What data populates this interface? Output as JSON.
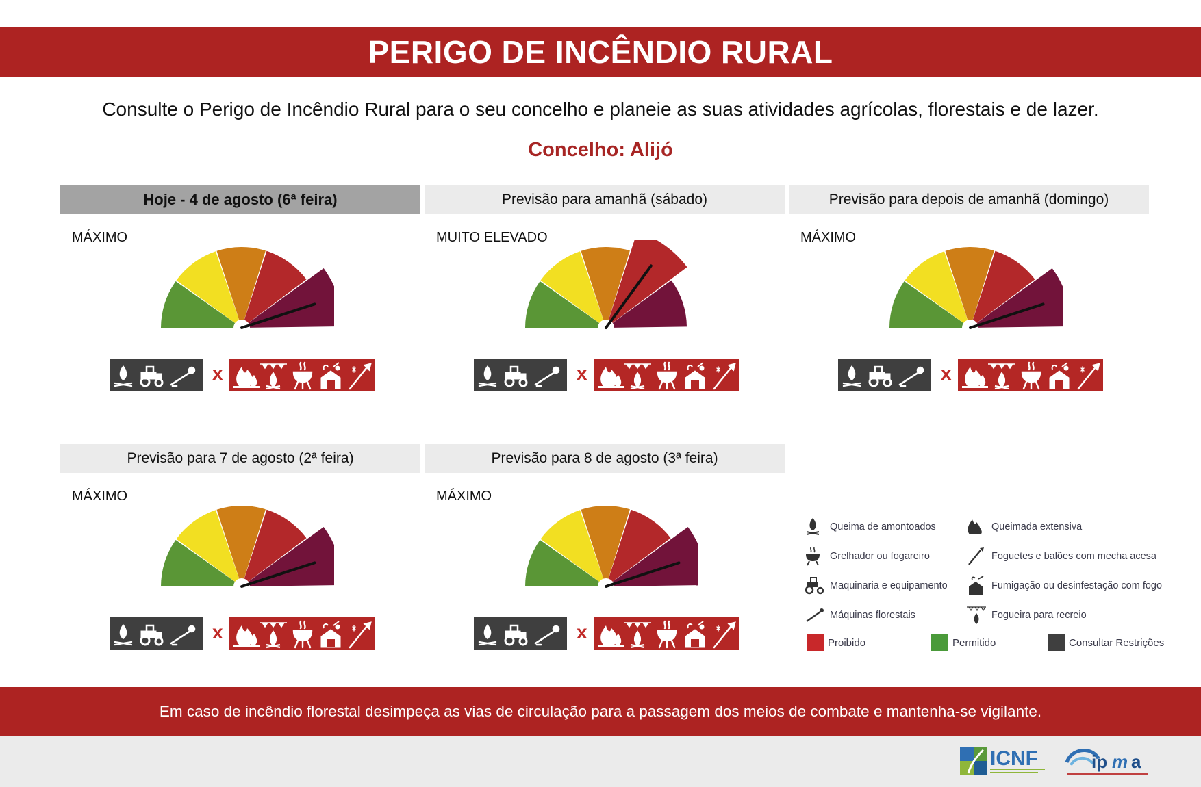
{
  "header": {
    "title": "PERIGO DE INCÊNDIO RURAL"
  },
  "intro": "Consulte o Perigo de Incêndio Rural para o seu concelho e planeie as suas atividades agrícolas, florestais e de lazer.",
  "concelho": "Concelho: Alijó",
  "colors": {
    "banner_red": "#ad2322",
    "level_green": "#5a9636",
    "level_yellow": "#f2df22",
    "level_orange": "#ce7e17",
    "level_red": "#b3282a",
    "level_maximum": "#72133a",
    "restrictions_grey": "#3f3f3f"
  },
  "panels": [
    {
      "header": "Hoje - 4 de agosto (6ª feira)",
      "level": "MÁXIMO",
      "level_index": 5,
      "today": true
    },
    {
      "header": "Previsão para amanhã (sábado)",
      "level": "MUITO ELEVADO",
      "level_index": 4,
      "today": false
    },
    {
      "header": "Previsão para depois de amanhã (domingo)",
      "level": "MÁXIMO",
      "level_index": 5,
      "today": false
    },
    {
      "header": "Previsão para 7 de agosto (2ª feira)",
      "level": "MÁXIMO",
      "level_index": 5,
      "today": false
    },
    {
      "header": "Previsão para 8 de agosto (3ª feira)",
      "level": "MÁXIMO",
      "level_index": 5,
      "today": false
    }
  ],
  "legend": {
    "items": [
      {
        "label": "Queima de amontoados",
        "icon": "pile-burning-icon"
      },
      {
        "label": "Queimada extensiva",
        "icon": "extensive-burning-icon"
      },
      {
        "label": "Grelhador ou fogareiro",
        "icon": "grill-icon"
      },
      {
        "label": "Foguetes e balões com mecha acesa",
        "icon": "fireworks-icon"
      },
      {
        "label": "Maquinaria e equipamento",
        "icon": "tractor-icon"
      },
      {
        "label": "Fumigação ou desinfestação com fogo",
        "icon": "fumigation-icon"
      },
      {
        "label": "Máquinas florestais",
        "icon": "chainsaw-icon"
      },
      {
        "label": "Fogueira para recreio",
        "icon": "campfire-icon"
      }
    ],
    "swatches": [
      {
        "label": "Proibido",
        "color": "#c8282a"
      },
      {
        "label": "Permitido",
        "color": "#4a9a3a"
      },
      {
        "label": "Consultar Restrições",
        "color": "#3f3f3f"
      }
    ]
  },
  "footer": "Em caso de incêndio florestal desimpeça as vias de circulação para a passagem dos meios de combate e mantenha-se vigilante.",
  "logos": {
    "icnf": "ICNF",
    "ipma": "ipma"
  }
}
